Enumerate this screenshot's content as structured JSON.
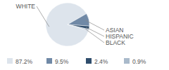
{
  "chart_data": {
    "type": "pie",
    "categories": [
      "WHITE",
      "ASIAN",
      "HISPANIC",
      "BLACK"
    ],
    "values": [
      87.2,
      9.5,
      2.4,
      0.9
    ],
    "value_labels": [
      "87.2%",
      "9.5%",
      "2.4%",
      "0.9%"
    ],
    "colors": [
      "#dde4ec",
      "#7089a6",
      "#2f4d6c",
      "#a9bacb"
    ]
  }
}
